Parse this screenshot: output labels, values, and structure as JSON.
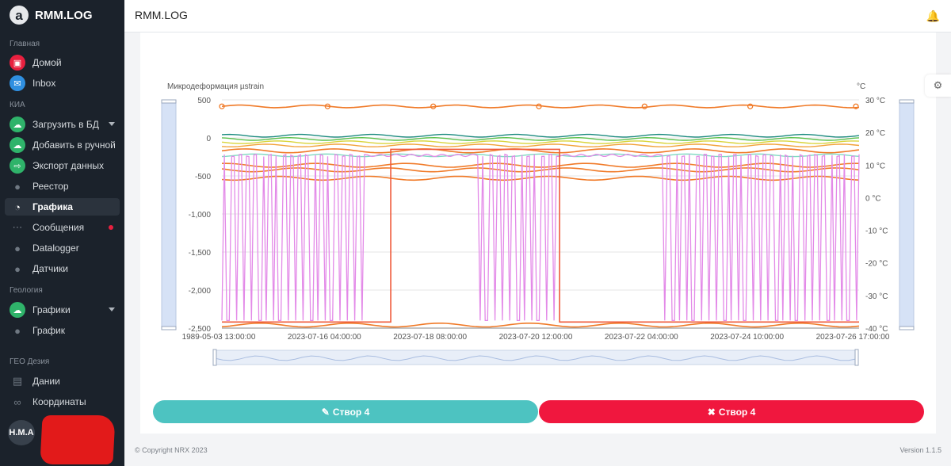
{
  "app": {
    "logo_letter": "a",
    "name": "RMM.LOG"
  },
  "sidebar": {
    "sections": [
      {
        "label": "Главная",
        "items": [
          {
            "label": "Домой",
            "icon": "home-icon",
            "color": "red"
          },
          {
            "label": "Inbox",
            "icon": "mail-icon",
            "color": "blue"
          }
        ]
      },
      {
        "label": "КИА",
        "items": [
          {
            "label": "Загрузить в БД",
            "icon": "cloud-upload-icon",
            "color": "green",
            "caret": true
          },
          {
            "label": "Добавить в ручной",
            "icon": "cloud-download-icon",
            "color": "green"
          },
          {
            "label": "Экспорт данных",
            "icon": "export-icon",
            "color": "green"
          },
          {
            "label": "Реестор",
            "icon": "person-icon",
            "color": "gray"
          },
          {
            "label": "Графика",
            "icon": "pie-chart-icon",
            "color": "gray",
            "active": true
          },
          {
            "label": "Сообщения",
            "icon": "chat-icon",
            "color": "gray",
            "dot": true
          },
          {
            "label": "Datalogger",
            "icon": "person-icon",
            "color": "gray"
          },
          {
            "label": "Датчики",
            "icon": "person-icon",
            "color": "gray"
          }
        ]
      },
      {
        "label": "Геология",
        "items": [
          {
            "label": "Графики",
            "icon": "cloud-upload-icon",
            "color": "green",
            "caret": true
          },
          {
            "label": "График",
            "icon": "person-icon",
            "color": "gray"
          }
        ]
      },
      {
        "label": "ГЕО Дезия",
        "items": [
          {
            "label": "Дании",
            "icon": "document-icon",
            "color": "gray"
          },
          {
            "label": "Координаты",
            "icon": "infinity-icon",
            "color": "gray"
          }
        ]
      }
    ],
    "user": {
      "initials": "H.M.A"
    }
  },
  "header": {
    "title": "RMM.LOG"
  },
  "chart_data": {
    "type": "line",
    "title": "",
    "ylabel_left": "Микродеформация  µstrain",
    "ylabel_right": "°C",
    "yticks_left": [
      "500",
      "0",
      "-500",
      "-1,000",
      "-1,500",
      "-2,000",
      "-2,500"
    ],
    "yticks_right": [
      "30 °C",
      "20 °C",
      "10 °C",
      "0 °C",
      "-10 °C",
      "-20 °C",
      "-30 °C",
      "-40 °C"
    ],
    "ylim_left": [
      -2500,
      500
    ],
    "ylim_right": [
      -40,
      30
    ],
    "xticks": [
      "1989-05-03 13:00:00",
      "2023-07-16 04:00:00",
      "2023-07-18 08:00:00",
      "2023-07-20 12:00:00",
      "2023-07-22 04:00:00",
      "2023-07-24 10:00:00",
      "2023-07-26 17:00:00"
    ],
    "series_temperature_c": [
      {
        "name": "temp-orange-top",
        "color": "#f07a28",
        "level": 28
      },
      {
        "name": "temp-teal",
        "color": "#1a8a7e",
        "level": 19
      },
      {
        "name": "temp-green",
        "color": "#5cc04a",
        "level": 18
      },
      {
        "name": "temp-yellow",
        "color": "#d9d43a",
        "level": 17
      },
      {
        "name": "temp-orange",
        "color": "#f2a23a",
        "level": 16
      },
      {
        "name": "temp-mint",
        "color": "#7fd9c2",
        "level": 13
      }
    ],
    "series_strain": [
      {
        "name": "strain-orange-1",
        "color": "#f07a28",
        "level": -170
      },
      {
        "name": "strain-orange-2",
        "color": "#f07a28",
        "level": -360
      },
      {
        "name": "strain-orange-3",
        "color": "#f07a28",
        "level": -420
      },
      {
        "name": "strain-orange-4",
        "color": "#f07a28",
        "level": -530
      },
      {
        "name": "strain-orange-bottom",
        "color": "#f07a28",
        "level": -2460
      }
    ],
    "pink_series": {
      "name": "strain-pink",
      "color": "#e38ae8",
      "high": -230,
      "low": -2400
    },
    "step_series": {
      "name": "strain-step",
      "color": "#ef5a3a",
      "high": -150,
      "low": -2420
    }
  },
  "buttons": {
    "edit_label": "Створ 4",
    "delete_label": "Створ 4"
  },
  "footer": {
    "copyright": "© Copyright NRX 2023",
    "version": "Version 1.1.5"
  }
}
